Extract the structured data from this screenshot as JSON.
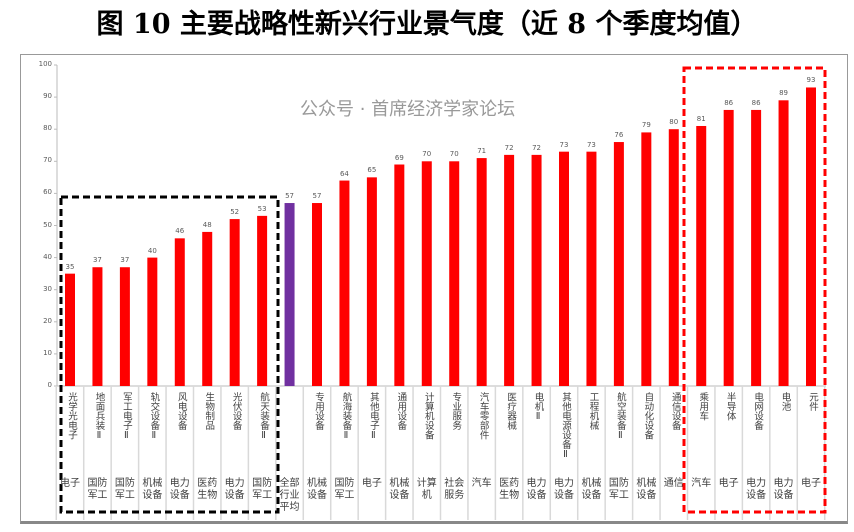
{
  "title": "图 10  主要战略性新兴行业景气度（近 8 个季度均值）",
  "chart_data": {
    "type": "bar",
    "title": "图 10  主要战略性新兴行业景气度（近 8 个季度均值）",
    "ylim": [
      0,
      100
    ],
    "yticks": [
      0,
      10,
      20,
      30,
      40,
      50,
      60,
      70,
      80,
      90,
      100
    ],
    "grid": false,
    "categories": [
      "光学光电子",
      "地面兵装Ⅱ",
      "军工电子Ⅱ",
      "轨交设备Ⅱ",
      "风电设备",
      "生物制品",
      "光伏设备",
      "航天装备Ⅱ",
      "",
      "专用设备",
      "航海装备Ⅱ",
      "其他电子Ⅱ",
      "通用设备",
      "计算机设备",
      "专业服务",
      "汽车零部件",
      "医疗器械",
      "电机Ⅱ",
      "其他电源设备Ⅱ",
      "工程机械",
      "航空装备Ⅱ",
      "自动化设备",
      "通信设备",
      "乘用车",
      "半导体",
      "电网设备",
      "电池",
      "元件"
    ],
    "groups": [
      "电子",
      "国防军工",
      "国防军工",
      "机械设备",
      "电力设备",
      "医药生物",
      "电力设备",
      "国防军工",
      "全部行业平均",
      "机械设备",
      "国防军工",
      "电子",
      "机械设备",
      "计算机",
      "社会服务",
      "汽车",
      "医药生物",
      "电力设备",
      "电力设备",
      "机械设备",
      "国防军工",
      "机械设备",
      "通信",
      "汽车",
      "电子",
      "电力设备",
      "电力设备",
      "电子"
    ],
    "values": [
      35,
      37,
      37,
      40,
      46,
      48,
      52,
      53,
      57,
      57,
      64,
      65,
      69,
      70,
      70,
      71,
      72,
      72,
      73,
      73,
      76,
      79,
      80,
      81,
      86,
      86,
      89,
      93
    ],
    "colors": {
      "bar": "#ff0000",
      "average": "#7030a0",
      "low_box": "#000000",
      "high_box": "#ff0000"
    },
    "highlight_average_index": 8
  },
  "watermark": "公众号 · 首席经济学家论坛"
}
